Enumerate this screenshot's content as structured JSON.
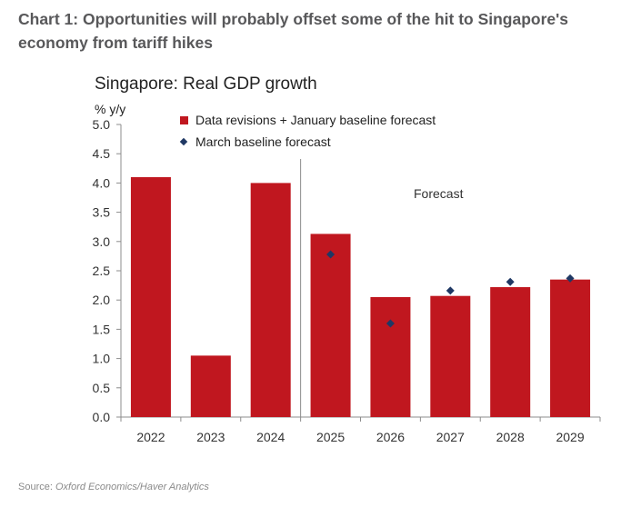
{
  "figure": {
    "title": "Chart 1: Opportunities will probably offset some of the hit to Singapore's economy from tariff hikes",
    "source_label": "Source:",
    "source_text": "Oxford Economics/Haver Analytics"
  },
  "chart_data": {
    "type": "bar",
    "title": "Singapore: Real GDP growth",
    "xlabel": "",
    "ylabel": "% y/y",
    "ylim": [
      0,
      5
    ],
    "yticks": [
      "0.0",
      "0.5",
      "1.0",
      "1.5",
      "2.0",
      "2.5",
      "3.0",
      "3.5",
      "4.0",
      "4.5",
      "5.0"
    ],
    "categories": [
      "2022",
      "2023",
      "2024",
      "2025",
      "2026",
      "2027",
      "2028",
      "2029"
    ],
    "series": [
      {
        "name": "Data revisions + January baseline forecast",
        "kind": "bar",
        "color": "#c0171f",
        "values": [
          4.1,
          1.05,
          4.0,
          3.13,
          2.05,
          2.07,
          2.22,
          2.35
        ]
      },
      {
        "name": "March baseline forecast",
        "kind": "marker",
        "color": "#1f3864",
        "values": [
          null,
          null,
          null,
          2.78,
          1.6,
          2.16,
          2.31,
          2.37
        ]
      }
    ],
    "annotation": "Forecast",
    "forecast_start": "2025",
    "grid": false,
    "legend_position": "top-left"
  }
}
